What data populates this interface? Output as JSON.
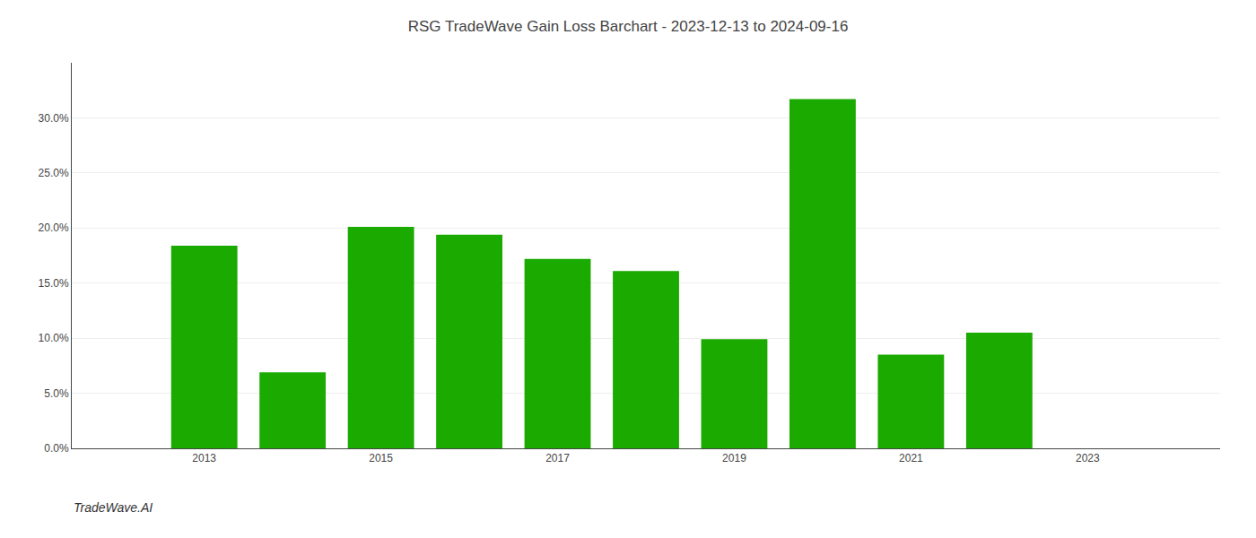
{
  "chart_data": {
    "type": "bar",
    "title": "RSG TradeWave Gain Loss Barchart - 2023-12-13 to 2024-09-16",
    "x": [
      2013,
      2014,
      2015,
      2016,
      2017,
      2018,
      2019,
      2020,
      2021,
      2022,
      2023
    ],
    "values": [
      0.184,
      0.069,
      0.201,
      0.194,
      0.172,
      0.161,
      0.099,
      0.317,
      0.085,
      0.105,
      0.0
    ],
    "color": "#1aaa00",
    "xlim": [
      2011.5,
      2024.5
    ],
    "xticks": [
      2013,
      2015,
      2017,
      2019,
      2021,
      2023
    ],
    "ylim": [
      0,
      0.35
    ],
    "yticks": [
      {
        "value": 0.0,
        "label": "0.0%"
      },
      {
        "value": 0.05,
        "label": "5.0%"
      },
      {
        "value": 0.1,
        "label": "10.0%"
      },
      {
        "value": 0.15,
        "label": "15.0%"
      },
      {
        "value": 0.2,
        "label": "20.0%"
      },
      {
        "value": 0.25,
        "label": "25.0%"
      },
      {
        "value": 0.3,
        "label": "30.0%"
      }
    ],
    "grid": true,
    "annotations": [
      {
        "text": "TradeWave.AI"
      }
    ]
  }
}
